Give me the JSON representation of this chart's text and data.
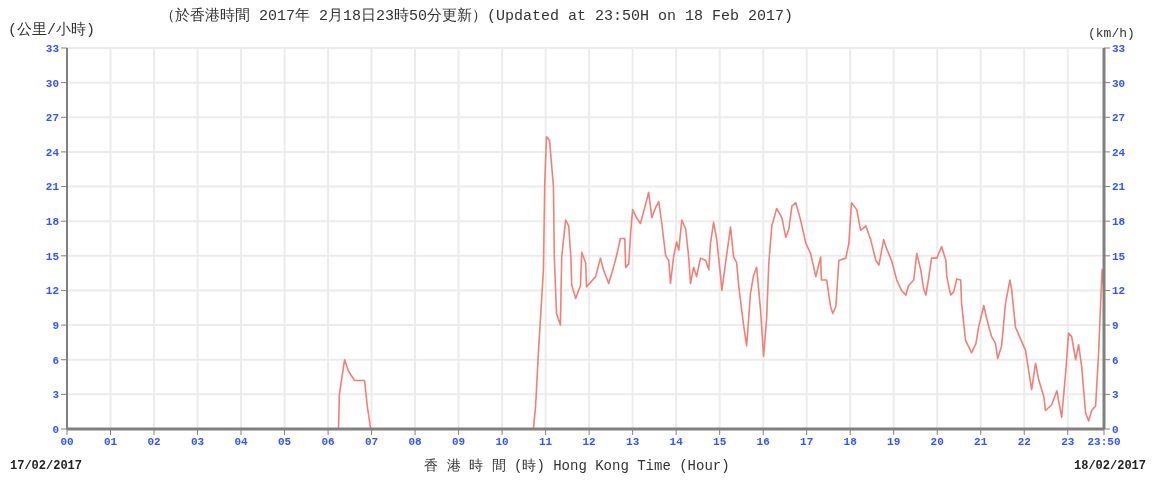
{
  "chart_data": {
    "type": "line",
    "title": "（於香港時間 2017年 2月18日23時50分更新）(Updated at 23:50H on 18 Feb 2017)",
    "xlabel": "香 港 時 間 (時) Hong Kong Time (Hour)",
    "ylabel": "(公里/小時)",
    "y2label": "(km/h)",
    "annotations": [
      "17/02/2017",
      "18/02/2017"
    ],
    "x": [
      0,
      6.24,
      6.26,
      6.38,
      6.47,
      6.61,
      6.84,
      6.9,
      6.98,
      10.72,
      10.77,
      10.84,
      10.95,
      10.98,
      11.02,
      11.09,
      11.18,
      11.2,
      11.25,
      11.34,
      11.37,
      11.46,
      11.53,
      11.58,
      11.6,
      11.69,
      11.8,
      11.83,
      11.92,
      11.94,
      12.03,
      12.15,
      12.26,
      12.33,
      12.45,
      12.56,
      12.63,
      12.72,
      12.82,
      12.84,
      12.91,
      12.95,
      13.0,
      13.09,
      13.18,
      13.25,
      13.37,
      13.44,
      13.53,
      13.6,
      13.67,
      13.76,
      13.83,
      13.87,
      13.94,
      14.01,
      14.06,
      14.13,
      14.22,
      14.29,
      14.33,
      14.4,
      14.47,
      14.56,
      14.68,
      14.75,
      14.79,
      14.86,
      14.93,
      15.02,
      15.05,
      15.14,
      15.25,
      15.32,
      15.39,
      15.44,
      15.55,
      15.62,
      15.71,
      15.78,
      15.85,
      15.94,
      16.01,
      16.08,
      16.13,
      16.2,
      16.31,
      16.43,
      16.52,
      16.59,
      16.66,
      16.75,
      16.86,
      16.98,
      17.09,
      17.21,
      17.32,
      17.34,
      17.46,
      17.55,
      17.6,
      17.67,
      17.74,
      17.9,
      17.97,
      18.03,
      18.15,
      18.24,
      18.36,
      18.47,
      18.59,
      18.66,
      18.77,
      18.84,
      18.95,
      19.07,
      19.18,
      19.28,
      19.34,
      19.46,
      19.53,
      19.62,
      19.69,
      19.74,
      19.8,
      19.87,
      19.99,
      20.1,
      20.2,
      20.22,
      20.31,
      20.38,
      20.45,
      20.54,
      20.56,
      20.65,
      20.79,
      20.89,
      20.95,
      21.07,
      21.14,
      21.25,
      21.34,
      21.39,
      21.48,
      21.57,
      21.67,
      21.71,
      21.8,
      21.87,
      22.03,
      22.1,
      22.17,
      22.26,
      22.33,
      22.45,
      22.49,
      22.63,
      22.75,
      22.86,
      22.95,
      23.02,
      23.09,
      23.18,
      23.25,
      23.32,
      23.41,
      23.48,
      23.55,
      23.64,
      23.71,
      23.75,
      23.79,
      23.8333
    ],
    "series": [
      {
        "color": "#f08078",
        "values": [
          0,
          0,
          3,
          6,
          5,
          4.2,
          4.2,
          2,
          0,
          0,
          2,
          7,
          13.8,
          21.3,
          25.3,
          25,
          21,
          14.9,
          10,
          9,
          14.9,
          18.1,
          17.6,
          14.9,
          12.5,
          11.3,
          12.4,
          15.3,
          14.4,
          12.3,
          12.7,
          13.2,
          14.8,
          13.8,
          12.6,
          14,
          15,
          16.5,
          16.5,
          14,
          14.3,
          16.8,
          19,
          18.3,
          17.8,
          18.8,
          20.5,
          18.3,
          19.2,
          19.7,
          17.8,
          15,
          14.6,
          12.6,
          14.9,
          16.2,
          15.5,
          18.1,
          17.3,
          14.8,
          12.6,
          14,
          13.2,
          14.8,
          14.6,
          13.8,
          16.1,
          17.9,
          16.5,
          13.3,
          12,
          14.5,
          17.5,
          14.9,
          14.4,
          12.3,
          9,
          7.2,
          11.8,
          13.3,
          14,
          10.3,
          6.3,
          9.6,
          14.4,
          17.6,
          19.1,
          18.3,
          16.6,
          17.3,
          19.3,
          19.6,
          18.1,
          16.1,
          15.2,
          13.2,
          14.9,
          12.9,
          12.9,
          10.6,
          10,
          10.6,
          14.6,
          14.8,
          16.1,
          19.6,
          19,
          17.2,
          17.6,
          16.4,
          14.6,
          14.2,
          16.4,
          15.6,
          14.6,
          12.9,
          12,
          11.6,
          12.4,
          12.9,
          15.2,
          13.8,
          12.1,
          11.6,
          13,
          14.8,
          14.8,
          15.8,
          14.6,
          13.2,
          11.6,
          11.9,
          13,
          12.9,
          10.9,
          7.7,
          6.6,
          7.4,
          8.8,
          10.7,
          9.5,
          8,
          7.4,
          6.1,
          7.2,
          10.9,
          12.9,
          12.1,
          8.8,
          8.2,
          6.8,
          5.1,
          3.4,
          5.7,
          4.3,
          2.8,
          1.6,
          2.1,
          3.3,
          1,
          4.8,
          8.3,
          8,
          6,
          7.3,
          5.4,
          1.4,
          0.7,
          1.6,
          2,
          6.6,
          10.3,
          13.8,
          12
        ]
      }
    ],
    "xlim": [
      0,
      23.8333
    ],
    "xticks": [
      {
        "value": 0,
        "label": "00"
      },
      {
        "value": 1,
        "label": "01"
      },
      {
        "value": 2,
        "label": "02"
      },
      {
        "value": 3,
        "label": "03"
      },
      {
        "value": 4,
        "label": "04"
      },
      {
        "value": 5,
        "label": "05"
      },
      {
        "value": 6,
        "label": "06"
      },
      {
        "value": 7,
        "label": "07"
      },
      {
        "value": 8,
        "label": "08"
      },
      {
        "value": 9,
        "label": "09"
      },
      {
        "value": 10,
        "label": "10"
      },
      {
        "value": 11,
        "label": "11"
      },
      {
        "value": 12,
        "label": "12"
      },
      {
        "value": 13,
        "label": "13"
      },
      {
        "value": 14,
        "label": "14"
      },
      {
        "value": 15,
        "label": "15"
      },
      {
        "value": 16,
        "label": "16"
      },
      {
        "value": 17,
        "label": "17"
      },
      {
        "value": 18,
        "label": "18"
      },
      {
        "value": 19,
        "label": "19"
      },
      {
        "value": 20,
        "label": "20"
      },
      {
        "value": 21,
        "label": "21"
      },
      {
        "value": 22,
        "label": "22"
      },
      {
        "value": 23,
        "label": "23"
      },
      {
        "value": 23.8333,
        "label": "23:50"
      }
    ],
    "ylim": [
      0,
      33
    ],
    "yticks": [
      0,
      3,
      6,
      9,
      12,
      15,
      18,
      21,
      24,
      27,
      30,
      33
    ],
    "y2lim": [
      0,
      33
    ],
    "y2ticks": [
      0,
      3,
      6,
      9,
      12,
      15,
      18,
      21,
      24,
      27,
      30,
      33
    ],
    "grid": true,
    "marker": "none",
    "line_style": "solid"
  }
}
